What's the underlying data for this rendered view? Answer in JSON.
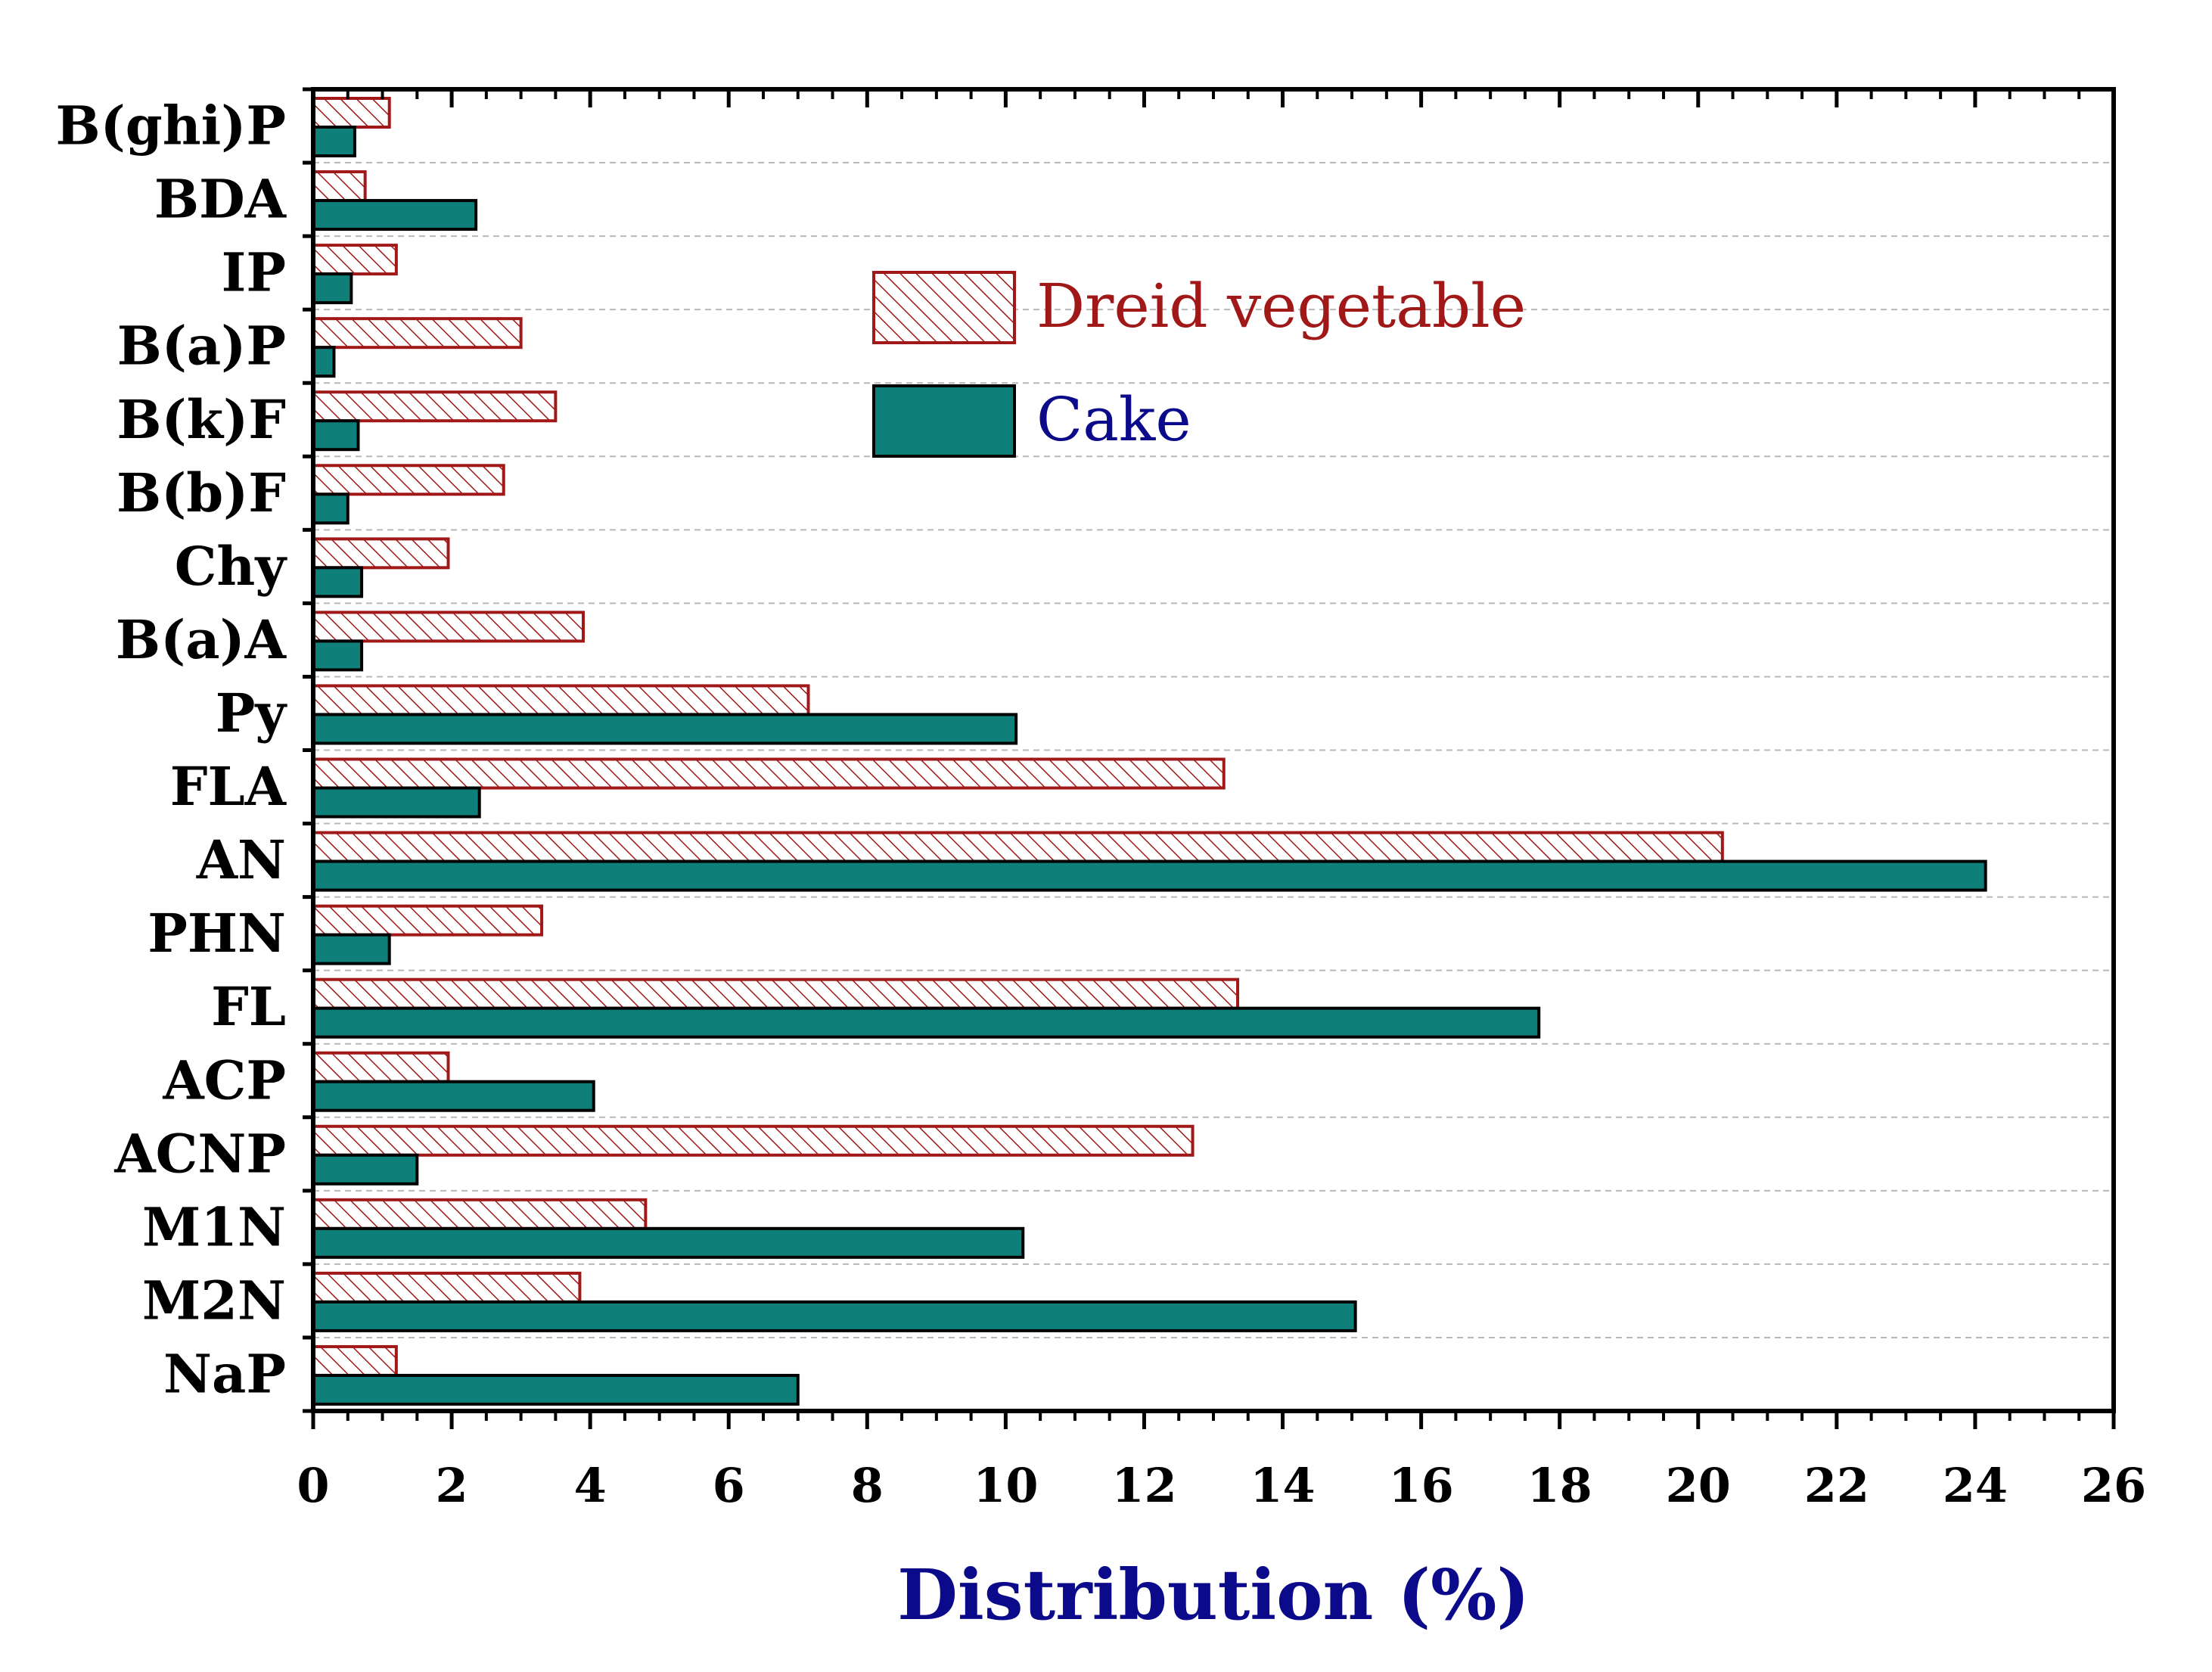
{
  "chart_data": {
    "type": "bar",
    "orientation": "horizontal",
    "title": "",
    "xlabel": "Distribution (%)",
    "ylabel": "",
    "xlim": [
      0,
      26
    ],
    "x_ticks": [
      0,
      2,
      4,
      6,
      8,
      10,
      12,
      14,
      16,
      18,
      20,
      22,
      24,
      26
    ],
    "grid": "dashed horizontal",
    "legend_position": "upper-center",
    "categories": [
      "B(ghi)P",
      "BDA",
      "IP",
      "B(a)P",
      "B(k)F",
      "B(b)F",
      "Chy",
      "B(a)A",
      "Py",
      "FLA",
      "AN",
      "PHN",
      "FL",
      "ACP",
      "ACNP",
      "M1N",
      "M2N",
      "NaP"
    ],
    "series": [
      {
        "name": "Dreid vegetable",
        "style": "hatched",
        "color": "#a01818",
        "values": [
          1.1,
          0.75,
          1.2,
          3.0,
          3.5,
          2.75,
          1.95,
          3.9,
          7.15,
          13.15,
          20.35,
          3.3,
          13.35,
          1.95,
          12.7,
          4.8,
          3.85,
          1.2
        ]
      },
      {
        "name": "Cake",
        "style": "solid",
        "color": "#0f7f7a",
        "values": [
          0.6,
          2.35,
          0.55,
          0.3,
          0.65,
          0.5,
          0.7,
          0.7,
          10.15,
          2.4,
          24.15,
          1.1,
          17.7,
          4.05,
          1.5,
          10.25,
          15.05,
          7.0
        ]
      }
    ]
  },
  "colors": {
    "dried_stroke": "#a01818",
    "cake_fill": "#0f7f7a",
    "xlabel_color": "#0a0a8a",
    "legend_cake_text": "#0a0a8a",
    "axis_color": "#000000",
    "grid_color": "#b8b8b8"
  }
}
